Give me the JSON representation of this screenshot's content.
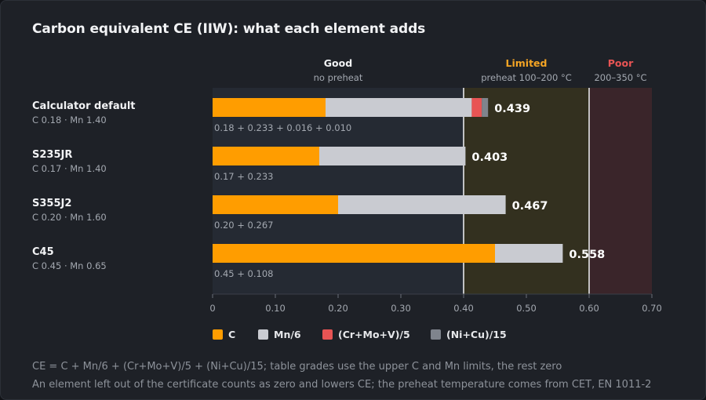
{
  "title": "Carbon equivalent CE (IIW): what each element adds",
  "colors": {
    "C": "#ff9d00",
    "Mn6": "#c9cbd1",
    "CrMoV5": "#e85454",
    "NiCu15": "#7f848d",
    "good_label": "#f2f3f5",
    "limited_label": "#f5a524",
    "poor_label": "#e85454",
    "background": "#1e2127"
  },
  "zones": [
    {
      "label": "Good",
      "sub": "no preheat",
      "from": 0,
      "to": 0.4,
      "tint": "#252a33",
      "label_color": "#f2f3f5"
    },
    {
      "label": "Limited",
      "sub": "preheat 100–200 °C",
      "from": 0.4,
      "to": 0.6,
      "tint": "#33301f",
      "label_color": "#f5a524"
    },
    {
      "label": "Poor",
      "sub": "200–350 °C",
      "from": 0.6,
      "to": 0.7,
      "tint": "#3a252a",
      "label_color": "#e85454"
    }
  ],
  "footer": {
    "line1": "CE = C + Mn/6 + (Cr+Mo+V)/5 + (Ni+Cu)/15; table grades use the upper C and Mn limits, the rest zero",
    "line2": "An element left out of the certificate counts as zero and lowers CE; the preheat temperature comes from CET, EN 1011-2"
  },
  "chart_data": {
    "type": "bar",
    "orientation": "horizontal",
    "stacked": true,
    "title": "Carbon equivalent CE (IIW): what each element adds",
    "xlim": [
      0,
      0.7
    ],
    "xticks": [
      "0",
      "0.10",
      "0.20",
      "0.30",
      "0.40",
      "0.50",
      "0.60",
      "0.70"
    ],
    "thresholds": [
      0.4,
      0.6
    ],
    "legend_position": "bottom",
    "series": [
      {
        "name": "C",
        "key": "C"
      },
      {
        "name": "Mn/6",
        "key": "Mn6"
      },
      {
        "name": "(Cr+Mo+V)/5",
        "key": "CrMoV5"
      },
      {
        "name": "(Ni+Cu)/15",
        "key": "NiCu15"
      }
    ],
    "rows": [
      {
        "name": "Calculator default",
        "sub": "C 0.18 · Mn 1.40",
        "values": [
          0.18,
          0.233,
          0.016,
          0.01
        ],
        "total": "0.439",
        "formula": "0.18 + 0.233 + 0.016 + 0.010"
      },
      {
        "name": "S235JR",
        "sub": "C 0.17 · Mn 1.40",
        "values": [
          0.17,
          0.233,
          0,
          0
        ],
        "total": "0.403",
        "formula": "0.17 + 0.233"
      },
      {
        "name": "S355J2",
        "sub": "C 0.20 · Mn 1.60",
        "values": [
          0.2,
          0.267,
          0,
          0
        ],
        "total": "0.467",
        "formula": "0.20 + 0.267"
      },
      {
        "name": "C45",
        "sub": "C 0.45 · Mn 0.65",
        "values": [
          0.45,
          0.108,
          0,
          0
        ],
        "total": "0.558",
        "formula": "0.45 + 0.108"
      }
    ]
  }
}
